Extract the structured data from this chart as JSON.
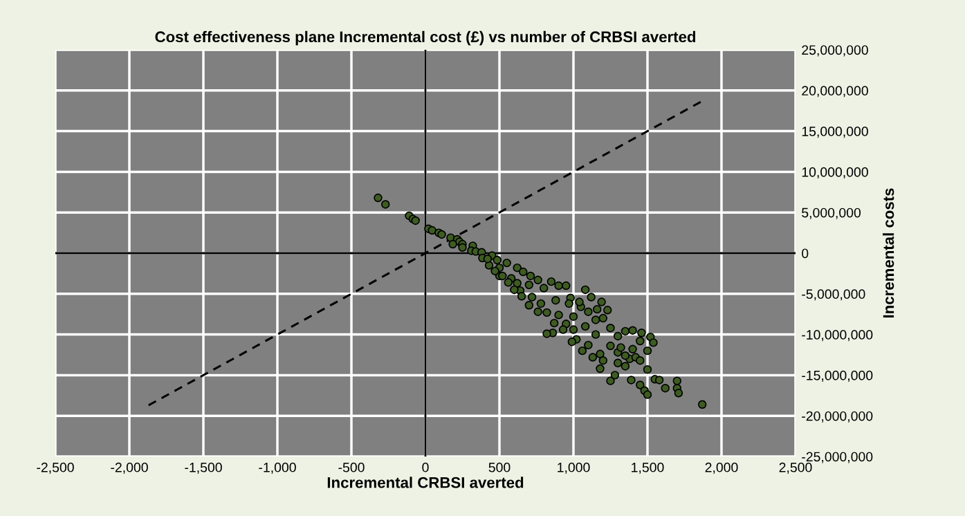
{
  "chart_data": {
    "type": "scatter",
    "title": "Cost effectiveness plane Incremental cost (£) vs number of CRBSI averted",
    "xlabel": "Incremental CRBSI averted",
    "ylabel": "Incremental costs",
    "xlim": [
      -2500,
      2500
    ],
    "ylim": [
      -25000000,
      25000000
    ],
    "xticks": [
      {
        "value": -2500,
        "label": "-2,500"
      },
      {
        "value": -2000,
        "label": "-2,000"
      },
      {
        "value": -1500,
        "label": "-1,500"
      },
      {
        "value": -1000,
        "label": "-1,000"
      },
      {
        "value": -500,
        "label": "-500"
      },
      0,
      {
        "value": 500,
        "label": "500"
      },
      {
        "value": 1000,
        "label": "1,000"
      },
      {
        "value": 1500,
        "label": "1,500"
      },
      {
        "value": 2000,
        "label": "2,000"
      },
      {
        "value": 2500,
        "label": "2,500"
      }
    ],
    "yticks": [
      {
        "value": -25000000,
        "label": "-25,000,000"
      },
      {
        "value": -20000000,
        "label": "-20,000,000"
      },
      {
        "value": -15000000,
        "label": "-15,000,000"
      },
      {
        "value": -10000000,
        "label": "-10,000,000"
      },
      {
        "value": -5000000,
        "label": "-5,000,000"
      },
      0,
      {
        "value": 5000000,
        "label": "5,000,000"
      },
      {
        "value": 10000000,
        "label": "10,000,000"
      },
      {
        "value": 15000000,
        "label": "15,000,000"
      },
      {
        "value": 20000000,
        "label": "20,000,000"
      },
      {
        "value": 25000000,
        "label": "25,000,000"
      }
    ],
    "grid": true,
    "legend": false,
    "series": [
      {
        "type": "line",
        "color": "#000000",
        "line_style": "dashed",
        "marker": "none",
        "x": [
          -1870,
          1870
        ],
        "values": [
          -18700000,
          18700000
        ]
      },
      {
        "color": "#3d5c22",
        "marker": "circle",
        "x": [
          -320,
          -270,
          -110,
          -85,
          -67,
          20,
          45,
          90,
          110,
          170,
          215,
          230,
          185,
          250,
          250,
          320,
          310,
          340,
          380,
          385,
          450,
          485,
          500,
          500,
          550,
          620,
          660,
          580,
          620,
          710,
          640,
          700,
          760,
          720,
          800,
          850,
          780,
          900,
          820,
          880,
          950,
          980,
          1000,
          1080,
          1050,
          1120,
          1190,
          1150,
          1000,
          950,
          900,
          860,
          1020,
          1080,
          1100,
          1150,
          1200,
          1250,
          1180,
          1250,
          1300,
          1350,
          1400,
          1450,
          1500,
          1520,
          1540,
          1460,
          1380,
          1300,
          1250,
          1280,
          1390,
          1180,
          1450,
          1480,
          1500,
          1550,
          1580,
          1620,
          1700,
          1700,
          1710,
          1870,
          1420,
          1350,
          1320,
          1200,
          1130,
          1060,
          990,
          930,
          870,
          820,
          760,
          700,
          650,
          600,
          560,
          520,
          470,
          430,
          420,
          1230,
          1160,
          1100,
          1040,
          970,
          1300,
          1350,
          1400,
          1450,
          1500
        ],
        "values": [
          6800000,
          6000000,
          4600000,
          4200000,
          4000000,
          3000000,
          2800000,
          2500000,
          2300000,
          1900000,
          1700000,
          1400000,
          1100000,
          1100000,
          700000,
          900000,
          300000,
          200000,
          100000,
          -600000,
          -300000,
          -850000,
          -1800000,
          -2800000,
          -1200000,
          -1800000,
          -2300000,
          -3100000,
          -3700000,
          -2800000,
          -4600000,
          -3900000,
          -3300000,
          -5400000,
          -4300000,
          -3500000,
          -6200000,
          -4000000,
          -7300000,
          -5800000,
          -4000000,
          -5500000,
          -7800000,
          -4500000,
          -6600000,
          -5400000,
          -6000000,
          -8200000,
          -9400000,
          -8700000,
          -7600000,
          -9800000,
          -10600000,
          -9000000,
          -11300000,
          -10000000,
          -8000000,
          -9200000,
          -12400000,
          -11400000,
          -10200000,
          -9600000,
          -9500000,
          -10800000,
          -12000000,
          -10300000,
          -11000000,
          -9800000,
          -13000000,
          -12200000,
          -15700000,
          -15000000,
          -15600000,
          -14200000,
          -16200000,
          -16900000,
          -17400000,
          -15500000,
          -15600000,
          -16600000,
          -15700000,
          -16600000,
          -17200000,
          -18600000,
          -12800000,
          -13900000,
          -11600000,
          -13200000,
          -12800000,
          -12000000,
          -10900000,
          -9400000,
          -8600000,
          -9900000,
          -7200000,
          -6400000,
          -5300000,
          -4500000,
          -3600000,
          -2800000,
          -2200000,
          -1500000,
          -700000,
          -7000000,
          -6900000,
          -7200000,
          -6000000,
          -6200000,
          -13500000,
          -12600000,
          -11800000,
          -13200000,
          -14300000
        ]
      }
    ]
  }
}
